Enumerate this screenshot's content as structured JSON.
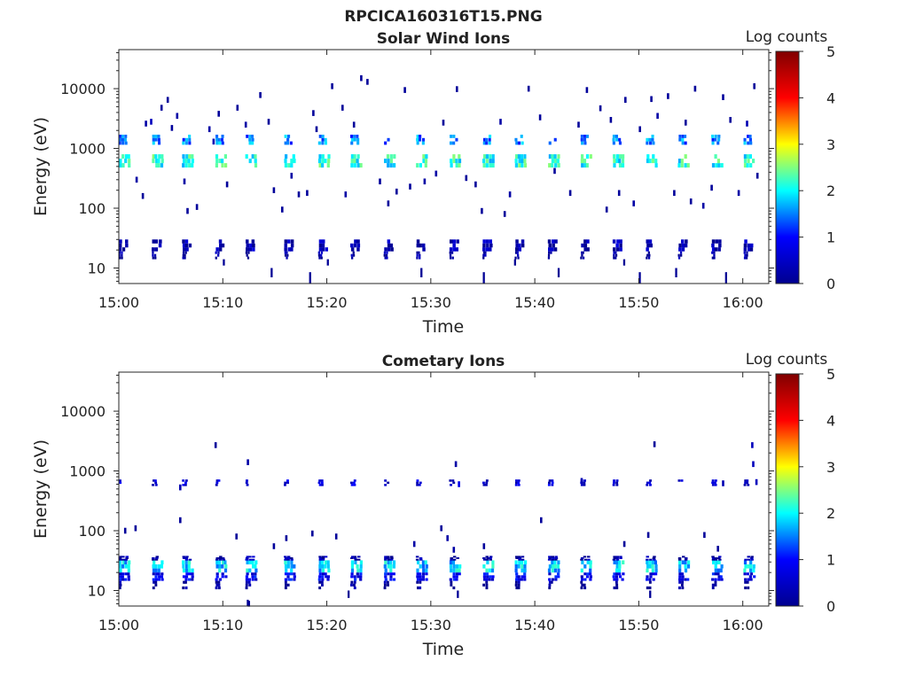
{
  "figure": {
    "title_line1": "RPCICA160316T15.PNG",
    "title_line2": "Solar Wind Ions",
    "bottom_title": "Cometary Ions"
  },
  "colormap": {
    "stops": [
      "#00008f",
      "#0000ff",
      "#00ffff",
      "#ffff00",
      "#ff0000",
      "#800000"
    ],
    "label": "Log counts",
    "range": [
      0,
      5
    ],
    "ticks": [
      "0",
      "1",
      "2",
      "3",
      "4",
      "5"
    ]
  },
  "chart_data": [
    {
      "type": "heatmap",
      "title": "Solar Wind Ions",
      "xlabel": "Time",
      "ylabel": "Energy (eV)",
      "ylog": true,
      "yrange_eV": [
        5.5,
        45000
      ],
      "xrange_min": [
        0,
        62.5
      ],
      "xticks": [
        {
          "t": 0,
          "label": "15:00"
        },
        {
          "t": 10,
          "label": "15:10"
        },
        {
          "t": 20,
          "label": "15:20"
        },
        {
          "t": 30,
          "label": "15:30"
        },
        {
          "t": 40,
          "label": "15:40"
        },
        {
          "t": 50,
          "label": "15:50"
        },
        {
          "t": 60,
          "label": "16:00"
        }
      ],
      "yticks": [
        {
          "e": 10,
          "label": "10"
        },
        {
          "e": 100,
          "label": "100"
        },
        {
          "e": 1000,
          "label": "1000"
        },
        {
          "e": 10000,
          "label": "10000"
        }
      ],
      "colorbar_label": "Log counts",
      "scan_times_min": [
        0,
        3.2,
        6.1,
        9.3,
        12.2,
        15.9,
        19.2,
        22.3,
        25.5,
        28.6,
        31.8,
        35.0,
        38.1,
        41.3,
        44.4,
        47.5,
        50.7,
        53.8,
        57.0,
        60.1
      ],
      "bands": [
        {
          "e_lo": 480,
          "e_hi": 800,
          "value": 2.1,
          "dt": 1.1
        },
        {
          "e_lo": 1150,
          "e_hi": 1700,
          "value": 1.5,
          "dt": 0.8
        },
        {
          "e_lo": 19,
          "e_hi": 30,
          "value": 0.3,
          "dt": 0.9
        },
        {
          "e_lo": 14,
          "e_hi": 19,
          "value": 0.1,
          "dt": 0.4
        }
      ],
      "scatter": [
        {
          "t": 2.5,
          "e": 2600,
          "v": 0.2
        },
        {
          "t": 3.0,
          "e": 2800,
          "v": 0.4
        },
        {
          "t": 5.0,
          "e": 2200,
          "v": 0.1
        },
        {
          "t": 2.2,
          "e": 160,
          "v": 0.1
        },
        {
          "t": 1.6,
          "e": 300,
          "v": 0.2
        },
        {
          "t": 4.0,
          "e": 4800,
          "v": 0.1
        },
        {
          "t": 4.6,
          "e": 6500,
          "v": 0.1
        },
        {
          "t": 5.5,
          "e": 3500,
          "v": 0.2
        },
        {
          "t": 6.2,
          "e": 280,
          "v": 0.2
        },
        {
          "t": 6.5,
          "e": 90,
          "v": 0.1
        },
        {
          "t": 7.4,
          "e": 105,
          "v": 0.1
        },
        {
          "t": 8.6,
          "e": 2100,
          "v": 0.2
        },
        {
          "t": 9.0,
          "e": 1300,
          "v": 0.3
        },
        {
          "t": 9.5,
          "e": 3800,
          "v": 0.1
        },
        {
          "t": 11.3,
          "e": 4800,
          "v": 0.1
        },
        {
          "t": 12.1,
          "e": 2500,
          "v": 0.2
        },
        {
          "t": 13.5,
          "e": 7800,
          "v": 0.1
        },
        {
          "t": 14.3,
          "e": 2800,
          "v": 0.1
        },
        {
          "t": 14.8,
          "e": 200,
          "v": 0.1
        },
        {
          "t": 15.6,
          "e": 95,
          "v": 0.1
        },
        {
          "t": 16.5,
          "e": 350,
          "v": 0.2
        },
        {
          "t": 17.2,
          "e": 170,
          "v": 0.1
        },
        {
          "t": 18.0,
          "e": 180,
          "v": 0.1
        },
        {
          "t": 18.6,
          "e": 3900,
          "v": 0.1
        },
        {
          "t": 18.9,
          "e": 2100,
          "v": 0.1
        },
        {
          "t": 20.4,
          "e": 11000,
          "v": 0.1
        },
        {
          "t": 21.4,
          "e": 4800,
          "v": 0.1
        },
        {
          "t": 21.7,
          "e": 170,
          "v": 0.2
        },
        {
          "t": 22.5,
          "e": 2500,
          "v": 0.1
        },
        {
          "t": 23.2,
          "e": 15000,
          "v": 0.1
        },
        {
          "t": 23.8,
          "e": 13000,
          "v": 0.1
        },
        {
          "t": 25.0,
          "e": 280,
          "v": 0.1
        },
        {
          "t": 25.8,
          "e": 120,
          "v": 0.1
        },
        {
          "t": 26.6,
          "e": 190,
          "v": 0.1
        },
        {
          "t": 27.4,
          "e": 9500,
          "v": 0.1
        },
        {
          "t": 29.3,
          "e": 280,
          "v": 0.2
        },
        {
          "t": 30.4,
          "e": 380,
          "v": 0.2
        },
        {
          "t": 31.1,
          "e": 2700,
          "v": 0.1
        },
        {
          "t": 32.4,
          "e": 9800,
          "v": 0.1
        },
        {
          "t": 33.3,
          "e": 320,
          "v": 0.1
        },
        {
          "t": 34.2,
          "e": 250,
          "v": 0.1
        },
        {
          "t": 34.8,
          "e": 90,
          "v": 0.1
        },
        {
          "t": 36.6,
          "e": 2800,
          "v": 0.2
        },
        {
          "t": 37.5,
          "e": 170,
          "v": 0.2
        },
        {
          "t": 39.3,
          "e": 10000,
          "v": 0.1
        },
        {
          "t": 40.4,
          "e": 3300,
          "v": 0.1
        },
        {
          "t": 41.8,
          "e": 420,
          "v": 0.1
        },
        {
          "t": 43.3,
          "e": 180,
          "v": 0.1
        },
        {
          "t": 44.1,
          "e": 2500,
          "v": 0.1
        },
        {
          "t": 44.9,
          "e": 9500,
          "v": 0.1
        },
        {
          "t": 46.2,
          "e": 4700,
          "v": 0.1
        },
        {
          "t": 47.2,
          "e": 3000,
          "v": 0.1
        },
        {
          "t": 48.0,
          "e": 180,
          "v": 0.1
        },
        {
          "t": 48.6,
          "e": 6500,
          "v": 0.1
        },
        {
          "t": 49.4,
          "e": 120,
          "v": 0.2
        },
        {
          "t": 50.0,
          "e": 2100,
          "v": 0.1
        },
        {
          "t": 51.1,
          "e": 6700,
          "v": 0.1
        },
        {
          "t": 51.7,
          "e": 3500,
          "v": 0.2
        },
        {
          "t": 52.7,
          "e": 7500,
          "v": 0.1
        },
        {
          "t": 53.3,
          "e": 180,
          "v": 0.1
        },
        {
          "t": 54.4,
          "e": 2700,
          "v": 0.1
        },
        {
          "t": 55.3,
          "e": 10000,
          "v": 0.1
        },
        {
          "t": 56.1,
          "e": 110,
          "v": 0.2
        },
        {
          "t": 56.9,
          "e": 220,
          "v": 0.1
        },
        {
          "t": 58.0,
          "e": 7200,
          "v": 0.1
        },
        {
          "t": 58.7,
          "e": 3000,
          "v": 0.1
        },
        {
          "t": 59.5,
          "e": 180,
          "v": 0.2
        },
        {
          "t": 60.3,
          "e": 2600,
          "v": 0.3
        },
        {
          "t": 61.0,
          "e": 11000,
          "v": 0.1
        },
        {
          "t": 61.3,
          "e": 350,
          "v": 0.1
        },
        {
          "t": 10.3,
          "e": 250,
          "v": 0.1
        },
        {
          "t": 27.9,
          "e": 230,
          "v": 0.1
        },
        {
          "t": 37.0,
          "e": 80,
          "v": 0.1
        },
        {
          "t": 46.8,
          "e": 95,
          "v": 0.1
        },
        {
          "t": 54.9,
          "e": 130,
          "v": 0.1
        }
      ],
      "low_streaks": [
        {
          "t": 18.3,
          "e_lo": 5.5,
          "e_hi": 8.5
        },
        {
          "t": 35.0,
          "e_lo": 5.5,
          "e_hi": 8.5
        },
        {
          "t": 50.0,
          "e_lo": 5.5,
          "e_hi": 8.5
        },
        {
          "t": 58.3,
          "e_lo": 5.5,
          "e_hi": 8.5
        },
        {
          "t": 14.6,
          "e_lo": 7,
          "e_hi": 10
        },
        {
          "t": 29.0,
          "e_lo": 7,
          "e_hi": 10
        },
        {
          "t": 42.2,
          "e_lo": 7,
          "e_hi": 10
        },
        {
          "t": 53.5,
          "e_lo": 7,
          "e_hi": 10
        },
        {
          "t": 10.0,
          "e_lo": 11,
          "e_hi": 14
        },
        {
          "t": 20.0,
          "e_lo": 11,
          "e_hi": 14
        },
        {
          "t": 38.0,
          "e_lo": 11,
          "e_hi": 14
        },
        {
          "t": 48.5,
          "e_lo": 11,
          "e_hi": 14
        }
      ]
    },
    {
      "type": "heatmap",
      "title": "Cometary Ions",
      "xlabel": "Time",
      "ylabel": "Energy (eV)",
      "ylog": true,
      "yrange_eV": [
        5.5,
        45000
      ],
      "xrange_min": [
        0,
        62.5
      ],
      "xticks": [
        {
          "t": 0,
          "label": "15:00"
        },
        {
          "t": 10,
          "label": "15:10"
        },
        {
          "t": 20,
          "label": "15:20"
        },
        {
          "t": 30,
          "label": "15:30"
        },
        {
          "t": 40,
          "label": "15:40"
        },
        {
          "t": 50,
          "label": "15:50"
        },
        {
          "t": 60,
          "label": "16:00"
        }
      ],
      "yticks": [
        {
          "e": 10,
          "label": "10"
        },
        {
          "e": 100,
          "label": "100"
        },
        {
          "e": 1000,
          "label": "1000"
        },
        {
          "e": 10000,
          "label": "10000"
        }
      ],
      "colorbar_label": "Log counts",
      "scan_times_min": [
        0,
        3.2,
        6.1,
        9.3,
        12.2,
        15.9,
        19.2,
        22.3,
        25.5,
        28.6,
        31.8,
        35.0,
        38.1,
        41.3,
        44.4,
        47.5,
        50.7,
        53.8,
        57.0,
        60.1
      ],
      "bands": [
        {
          "e_lo": 20,
          "e_hi": 32,
          "value": 1.8,
          "dt": 1.1
        },
        {
          "e_lo": 14.5,
          "e_hi": 20,
          "value": 0.8,
          "dt": 1.1
        },
        {
          "e_lo": 32,
          "e_hi": 38,
          "value": 0.2,
          "dt": 0.9
        },
        {
          "e_lo": 10.5,
          "e_hi": 14.5,
          "value": 0.05,
          "dt": 0.5
        },
        {
          "e_lo": 560,
          "e_hi": 720,
          "value": 0.6,
          "dt": 0.5
        }
      ],
      "scatter": [
        {
          "t": 0.5,
          "e": 100,
          "v": 0.1
        },
        {
          "t": 1.5,
          "e": 110,
          "v": 0.1
        },
        {
          "t": 5.8,
          "e": 530,
          "v": 0.3
        },
        {
          "t": 5.8,
          "e": 150,
          "v": 0.1
        },
        {
          "t": 9.2,
          "e": 2700,
          "v": 0.1
        },
        {
          "t": 12.3,
          "e": 1400,
          "v": 0.2
        },
        {
          "t": 11.2,
          "e": 80,
          "v": 0.1
        },
        {
          "t": 14.8,
          "e": 55,
          "v": 0.1
        },
        {
          "t": 16.0,
          "e": 75,
          "v": 0.1
        },
        {
          "t": 18.5,
          "e": 90,
          "v": 0.1
        },
        {
          "t": 20.8,
          "e": 80,
          "v": 0.1
        },
        {
          "t": 28.3,
          "e": 60,
          "v": 0.2
        },
        {
          "t": 30.9,
          "e": 110,
          "v": 0.1
        },
        {
          "t": 31.5,
          "e": 75,
          "v": 0.2
        },
        {
          "t": 32.1,
          "e": 48,
          "v": 0.2
        },
        {
          "t": 32.3,
          "e": 1300,
          "v": 0.2
        },
        {
          "t": 32.6,
          "e": 600,
          "v": 0.8
        },
        {
          "t": 40.5,
          "e": 150,
          "v": 0.1
        },
        {
          "t": 44.4,
          "e": 680,
          "v": 0.3
        },
        {
          "t": 48.5,
          "e": 60,
          "v": 0.1
        },
        {
          "t": 50.8,
          "e": 85,
          "v": 0.1
        },
        {
          "t": 51.4,
          "e": 2800,
          "v": 0.1
        },
        {
          "t": 56.2,
          "e": 85,
          "v": 0.1
        },
        {
          "t": 58.0,
          "e": 620,
          "v": 0.3
        },
        {
          "t": 60.8,
          "e": 2700,
          "v": 0.4
        },
        {
          "t": 60.9,
          "e": 1300,
          "v": 0.4
        },
        {
          "t": 61.2,
          "e": 650,
          "v": 0.4
        },
        {
          "t": 57.5,
          "e": 50,
          "v": 0.1
        },
        {
          "t": 35.0,
          "e": 55,
          "v": 0.1
        },
        {
          "t": 12.4,
          "e": 6,
          "v": 0.1
        }
      ],
      "low_streaks": [
        {
          "t": 12.3,
          "e_lo": 5.5,
          "e_hi": 7
        },
        {
          "t": 22.0,
          "e_lo": 7.5,
          "e_hi": 10
        },
        {
          "t": 32.5,
          "e_lo": 7.5,
          "e_hi": 10
        },
        {
          "t": 51.0,
          "e_lo": 7.5,
          "e_hi": 10
        }
      ]
    }
  ]
}
